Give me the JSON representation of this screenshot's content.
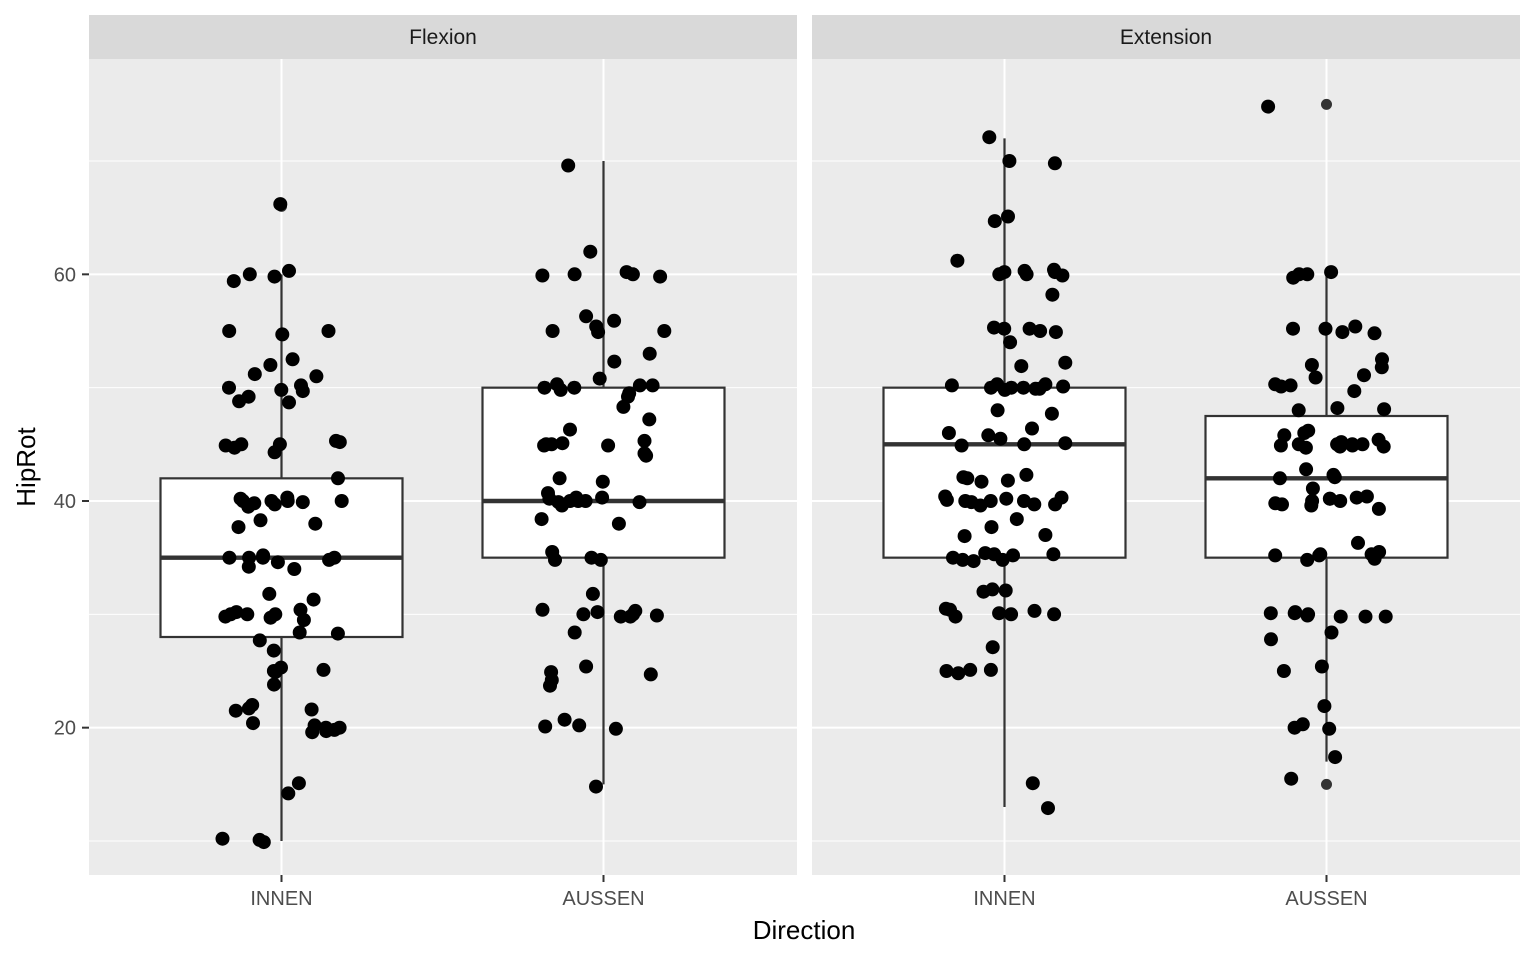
{
  "chart_data": {
    "type": "boxplot-jitter",
    "xlabel": "Direction",
    "ylabel": "HipRot",
    "ylim": [
      7,
      79
    ],
    "yticks": [
      20,
      40,
      60
    ],
    "categories": [
      "INNEN",
      "AUSSEN"
    ],
    "panels": [
      {
        "facet": "Flexion",
        "boxes": [
          {
            "category": "INNEN",
            "lower": 10,
            "q1": 28,
            "median": 35,
            "q3": 42,
            "upper": 60,
            "outliers": [
              66
            ]
          },
          {
            "category": "AUSSEN",
            "lower": 15,
            "q1": 35,
            "median": 40,
            "q3": 50,
            "upper": 70,
            "outliers": []
          }
        ],
        "points": [
          {
            "category": "INNEN",
            "values": [
              66.2,
              60.3,
              59.4,
              60,
              59.8,
              54.7,
              55,
              55,
              52.5,
              52,
              51.2,
              51,
              50.2,
              50,
              49.8,
              49.2,
              49.7,
              48.8,
              48.7,
              45,
              45,
              44.9,
              45.3,
              45.2,
              44.7,
              44.3,
              42,
              40,
              40,
              40,
              39.9,
              39.8,
              40.2,
              40,
              39.7,
              39.5,
              40.3,
              38.3,
              37.7,
              38,
              35.2,
              35,
              35,
              35,
              35,
              34.8,
              34.6,
              34.2,
              34,
              31.8,
              31.3,
              30.4,
              30.2,
              30,
              30,
              30,
              29.8,
              29.7,
              29.5,
              28.4,
              28.3,
              27.7,
              26.8,
              25.3,
              25,
              25.1,
              24.9,
              23.8,
              22,
              21.7,
              21.6,
              21.5,
              20.4,
              20.2,
              20,
              20,
              19.8,
              19.7,
              19.6,
              15.1,
              14.2,
              10.2,
              10.1,
              9.9
            ]
          },
          {
            "category": "AUSSEN",
            "values": [
              69.6,
              62,
              60.2,
              60,
              60,
              59.8,
              59.9,
              56.3,
              55.9,
              55.4,
              55,
              55,
              54.9,
              53,
              52.3,
              50.8,
              50.3,
              50.2,
              50.2,
              50,
              50,
              49.8,
              49.5,
              49.2,
              48.3,
              47.2,
              46.3,
              45.3,
              45.1,
              45,
              45,
              44.9,
              44.9,
              44.2,
              44,
              42,
              41.7,
              40.7,
              40.3,
              40.3,
              40.2,
              40,
              40,
              40,
              39.9,
              39.9,
              39.6,
              38.4,
              38,
              35.5,
              35,
              34.8,
              34.8,
              31.8,
              30.4,
              30.3,
              30.2,
              30,
              30,
              29.9,
              29.8,
              29.8,
              28.4,
              25.4,
              24.9,
              24.7,
              24.2,
              23.7,
              20.7,
              20.2,
              20.1,
              19.9,
              14.8
            ]
          }
        ]
      },
      {
        "facet": "Extension",
        "boxes": [
          {
            "category": "INNEN",
            "lower": 13,
            "q1": 35,
            "median": 45,
            "q3": 50,
            "upper": 72,
            "outliers": []
          },
          {
            "category": "AUSSEN",
            "lower": 17,
            "q1": 35,
            "median": 42,
            "q3": 47.5,
            "upper": 60,
            "outliers": [
              75,
              15
            ]
          }
        ],
        "points": [
          {
            "category": "INNEN",
            "values": [
              72.1,
              70,
              69.8,
              65.1,
              64.7,
              61.2,
              60.4,
              60.3,
              60.2,
              60.2,
              60,
              60,
              59.9,
              58.2,
              55.3,
              55.2,
              55.2,
              55,
              54.9,
              54,
              52.2,
              51.9,
              50.3,
              50.3,
              50.2,
              50.1,
              50,
              50,
              50,
              49.9,
              49.9,
              49.8,
              48,
              47.7,
              46.4,
              46,
              45.8,
              45.5,
              45.1,
              45,
              44.9,
              42.3,
              42.1,
              42,
              41.8,
              41.7,
              40.4,
              40.3,
              40.2,
              40.1,
              40,
              40,
              40,
              39.9,
              39.7,
              39.6,
              39.7,
              38.4,
              37.7,
              37,
              36.9,
              35.4,
              35.3,
              35.3,
              35.2,
              35,
              34.8,
              34.8,
              34.7,
              32.2,
              32.1,
              32,
              30.5,
              30.4,
              30.3,
              30.1,
              30,
              30,
              29.8,
              27.1,
              25.1,
              25.1,
              25,
              24.8,
              15.1,
              12.9
            ]
          },
          {
            "category": "AUSSEN",
            "values": [
              74.8,
              60.2,
              60,
              60,
              59.7,
              55.4,
              55.2,
              55.2,
              54.9,
              54.8,
              52.5,
              52,
              51.8,
              51.1,
              50.9,
              50.3,
              50.2,
              50.1,
              49.7,
              48.2,
              48.1,
              48,
              46.2,
              46,
              45.8,
              45.4,
              45.2,
              45,
              45,
              45,
              45,
              44.9,
              44.9,
              44.8,
              44.8,
              44.7,
              42.8,
              42.3,
              42.1,
              42,
              41.1,
              40.4,
              40.3,
              40.2,
              40.2,
              40,
              40,
              39.8,
              39.7,
              39.6,
              39.3,
              36.3,
              35.5,
              35.3,
              35.3,
              35.2,
              35.2,
              34.9,
              34.8,
              30.2,
              30.1,
              30.1,
              30,
              29.9,
              29.8,
              29.8,
              29.8,
              28.4,
              27.8,
              25.4,
              25,
              21.9,
              20.3,
              20,
              19.9,
              17.4,
              15.5
            ]
          }
        ]
      }
    ]
  }
}
